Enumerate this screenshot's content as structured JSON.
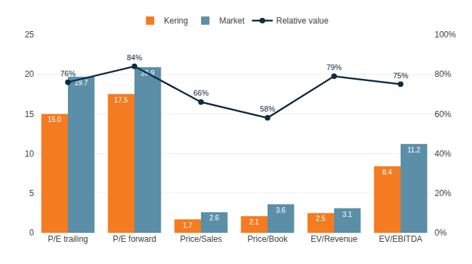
{
  "chart_data": {
    "type": "bar",
    "categories": [
      "P/E trailing",
      "P/E forward",
      "Price/Sales",
      "Price/Book",
      "EV/Revenue",
      "EV/EBITDA"
    ],
    "series": [
      {
        "name": "Kering",
        "type": "bar",
        "color": "#F47B20",
        "values": [
          15.0,
          17.5,
          1.7,
          2.1,
          2.5,
          8.4
        ],
        "value_labels": [
          "15.0",
          "17.5",
          "1.7",
          "2.1",
          "2.5",
          "8.4"
        ]
      },
      {
        "name": "Market",
        "type": "bar",
        "color": "#5B8FA8",
        "values": [
          19.7,
          20.9,
          2.6,
          3.6,
          3.1,
          11.2
        ],
        "value_labels": [
          "19.7",
          "20.9",
          "2.6",
          "3.6",
          "3.1",
          "11.2"
        ]
      },
      {
        "name": "Relative value",
        "type": "line",
        "axis": "y2",
        "color": "#0D2B45",
        "marker": "circle",
        "values": [
          0.76,
          0.84,
          0.66,
          0.58,
          0.79,
          0.75
        ],
        "value_labels": [
          "76%",
          "84%",
          "66%",
          "58%",
          "79%",
          "75%"
        ]
      }
    ],
    "ylim": [
      0,
      25
    ],
    "yticks": [
      0,
      5,
      10,
      15,
      20,
      25
    ],
    "y2lim": [
      0,
      1.0
    ],
    "y2ticks": [
      {
        "value": 0.0,
        "label": "0%"
      },
      {
        "value": 0.2,
        "label": "20%"
      },
      {
        "value": 0.4,
        "label": "40%"
      },
      {
        "value": 0.6,
        "label": "60%"
      },
      {
        "value": 0.8,
        "label": "80%"
      },
      {
        "value": 1.0,
        "label": "100%"
      }
    ],
    "grid": true,
    "legend": "top",
    "data_labels": true
  }
}
